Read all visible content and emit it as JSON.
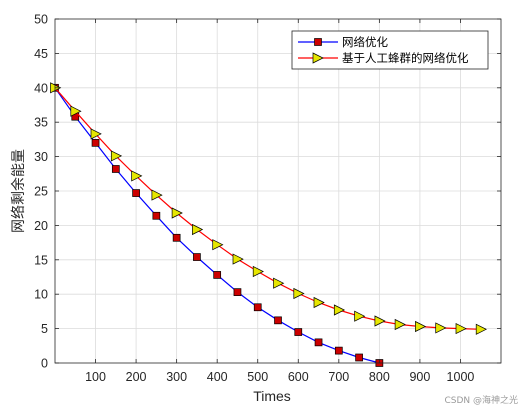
{
  "chart_data": {
    "type": "line",
    "xlabel": "Times",
    "ylabel": "网络剩余能量",
    "xlim": [
      0,
      1100
    ],
    "ylim": [
      0,
      50
    ],
    "xticks": [
      100,
      200,
      300,
      400,
      500,
      600,
      700,
      800,
      900,
      1000
    ],
    "yticks": [
      0,
      5,
      10,
      15,
      20,
      25,
      30,
      35,
      40,
      45,
      50
    ],
    "grid": true,
    "legend_position": "top-right",
    "series": [
      {
        "name": "网络优化",
        "color": "#0000ff",
        "marker": "square",
        "marker_color": "#cc0000",
        "x": [
          0,
          50,
          100,
          150,
          200,
          250,
          300,
          350,
          400,
          450,
          500,
          550,
          600,
          650,
          700,
          750,
          800
        ],
        "y": [
          40,
          35.8,
          32,
          28.2,
          24.7,
          21.4,
          18.2,
          15.4,
          12.8,
          10.3,
          8.1,
          6.2,
          4.5,
          3.0,
          1.8,
          0.8,
          0
        ]
      },
      {
        "name": "基于人工蜂群的网络优化",
        "color": "#ff0000",
        "marker": "triangle-right",
        "marker_color": "#e6e600",
        "x": [
          0,
          50,
          100,
          150,
          200,
          250,
          300,
          350,
          400,
          450,
          500,
          550,
          600,
          650,
          700,
          750,
          800,
          850,
          900,
          950,
          1000,
          1050
        ],
        "y": [
          40,
          36.6,
          33.3,
          30.1,
          27.2,
          24.4,
          21.8,
          19.4,
          17.2,
          15.1,
          13.3,
          11.6,
          10.1,
          8.8,
          7.7,
          6.8,
          6.1,
          5.6,
          5.3,
          5.1,
          5.0,
          4.9
        ]
      }
    ]
  },
  "watermark": "CSDN @海神之光"
}
